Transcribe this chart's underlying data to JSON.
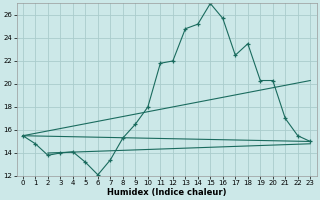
{
  "xlabel": "Humidex (Indice chaleur)",
  "xlim": [
    -0.5,
    23.5
  ],
  "ylim": [
    12,
    27
  ],
  "yticks": [
    12,
    14,
    16,
    18,
    20,
    22,
    24,
    26
  ],
  "xticks": [
    0,
    1,
    2,
    3,
    4,
    5,
    6,
    7,
    8,
    9,
    10,
    11,
    12,
    13,
    14,
    15,
    16,
    17,
    18,
    19,
    20,
    21,
    22,
    23
  ],
  "bg_color": "#cce8e8",
  "grid_color": "#aacccc",
  "line_color": "#1a6b5e",
  "wiggly_x": [
    0,
    1,
    2,
    3,
    4,
    5,
    6,
    7,
    8,
    9,
    10,
    11,
    12,
    13,
    14,
    15,
    16,
    17,
    18,
    19,
    20,
    21,
    22,
    23
  ],
  "wiggly_y": [
    15.5,
    14.8,
    13.8,
    14.0,
    14.1,
    13.2,
    12.1,
    13.4,
    15.3,
    16.5,
    18.0,
    21.8,
    22.0,
    24.8,
    25.2,
    27.0,
    25.7,
    22.5,
    23.5,
    20.3,
    20.3,
    17.0,
    15.5,
    15.0
  ],
  "straight_lines": [
    {
      "x": [
        0,
        23
      ],
      "y": [
        15.5,
        20.3
      ]
    },
    {
      "x": [
        0,
        23
      ],
      "y": [
        15.5,
        15.0
      ]
    },
    {
      "x": [
        2,
        23
      ],
      "y": [
        14.0,
        14.8
      ]
    }
  ]
}
